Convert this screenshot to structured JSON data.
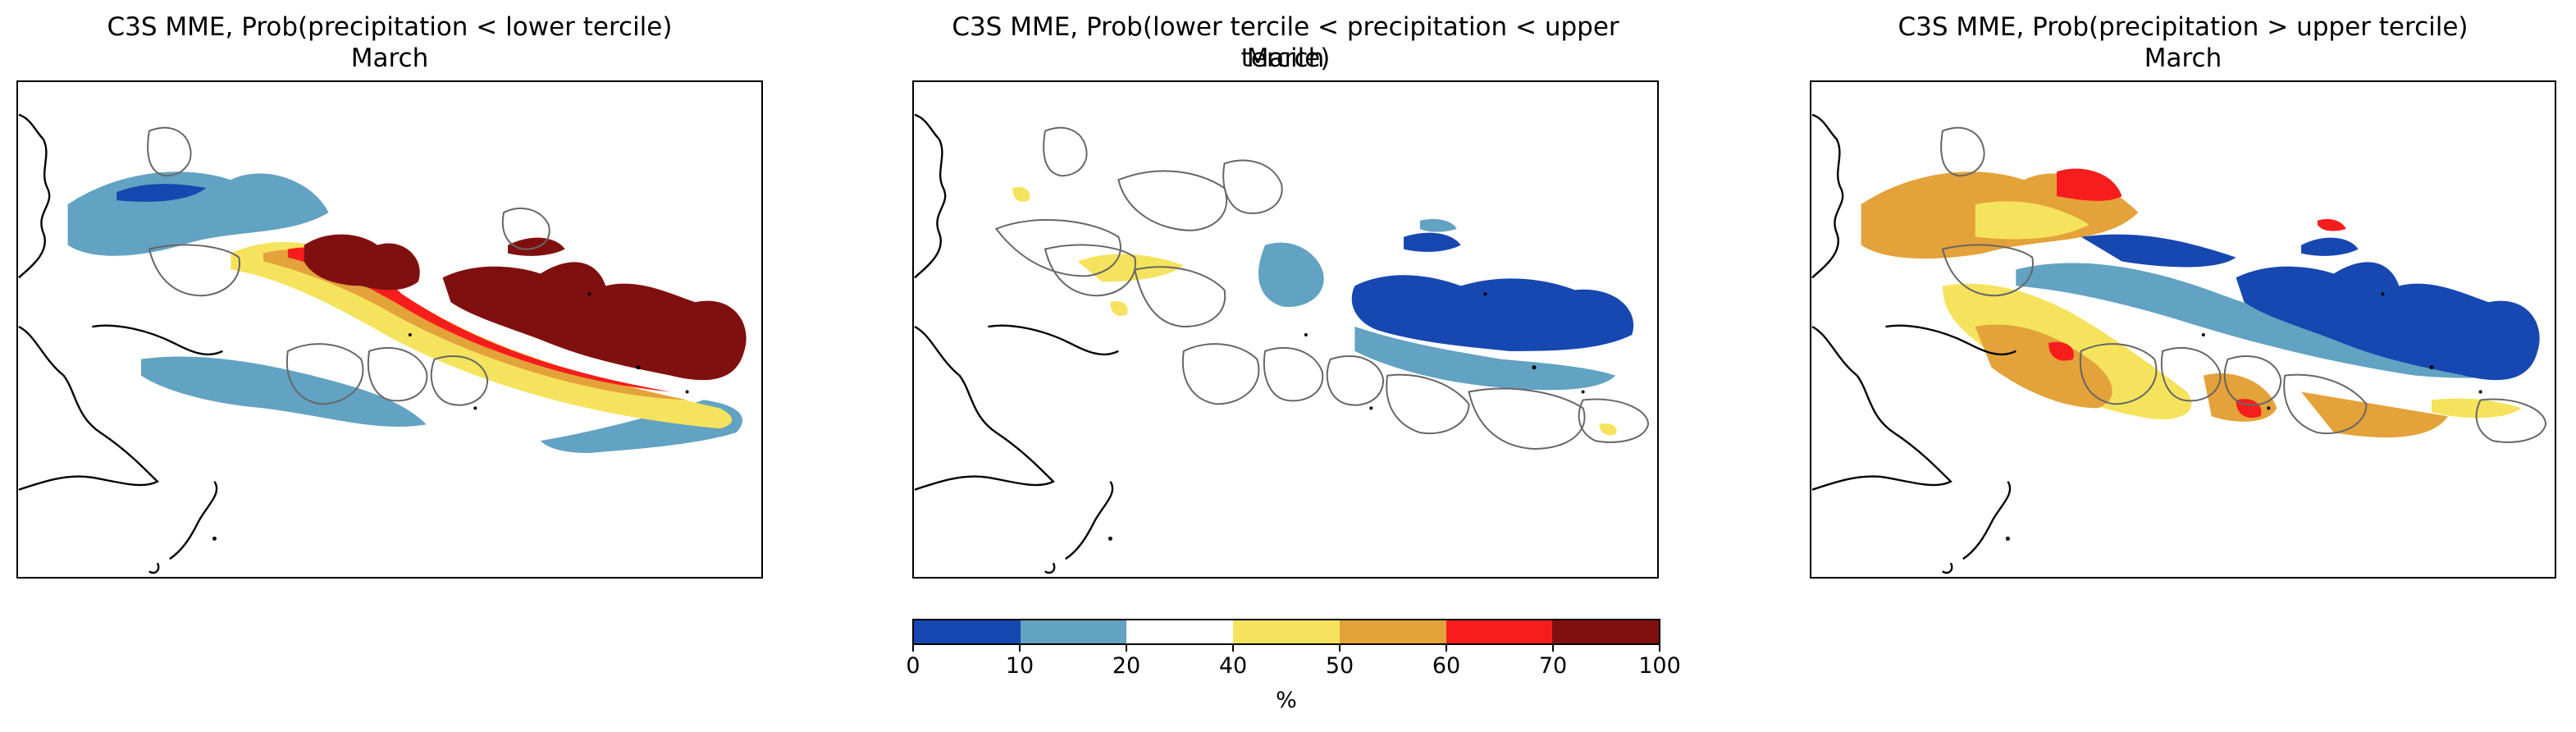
{
  "panels": [
    {
      "title_line1": "C3S MME, Prob(precipitation < lower tercile)",
      "title_line2": "March"
    },
    {
      "title_line1": "C3S MME, Prob(lower tercile < precipitation < upper tercile)",
      "title_line2": "March"
    },
    {
      "title_line1": "C3S MME, Prob(precipitation > upper tercile)",
      "title_line2": "March"
    }
  ],
  "colorbar": {
    "unit": "%",
    "ticks": [
      "0",
      "10",
      "20",
      "40",
      "50",
      "60",
      "70",
      "100"
    ],
    "bins": [
      {
        "range": [
          0,
          10
        ],
        "color": "#1747b0"
      },
      {
        "range": [
          10,
          20
        ],
        "color": "#62a2c2"
      },
      {
        "range": [
          20,
          40
        ],
        "color": "#ffffff"
      },
      {
        "range": [
          40,
          50
        ],
        "color": "#f5e35d"
      },
      {
        "range": [
          50,
          60
        ],
        "color": "#e3a23a"
      },
      {
        "range": [
          60,
          70
        ],
        "color": "#f81d1d"
      },
      {
        "range": [
          70,
          100
        ],
        "color": "#801010"
      }
    ]
  }
}
